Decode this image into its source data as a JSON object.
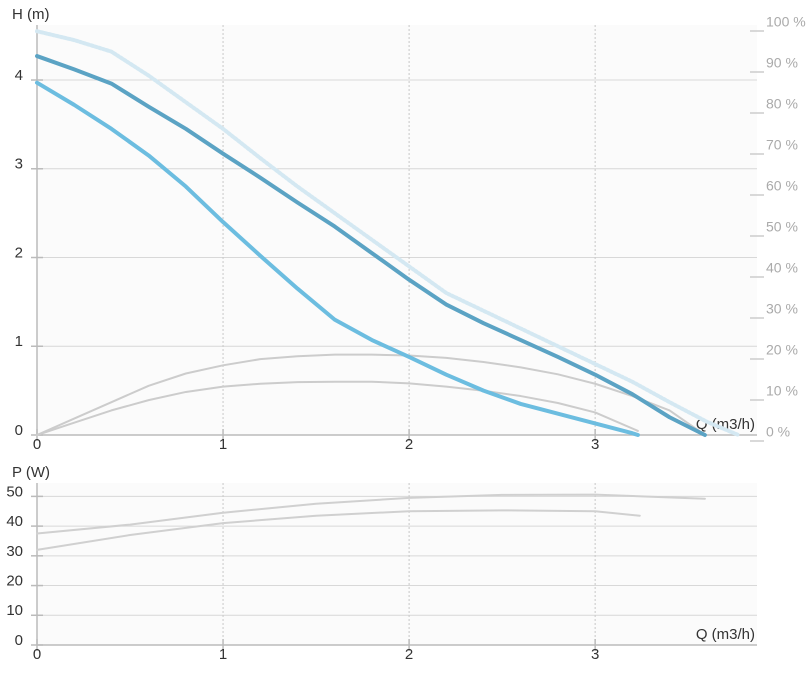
{
  "chart_data": [
    {
      "type": "line",
      "y_label": "H (m)",
      "x_label": "Q (m3/h)",
      "xlim": [
        0,
        3.87
      ],
      "xticks": [
        0,
        1,
        2,
        3
      ],
      "ylim": [
        0,
        4.62
      ],
      "yticks": [
        0,
        1,
        2,
        3,
        4
      ],
      "y2lim": [
        0,
        100
      ],
      "y2ticks": [
        {
          "value": 0,
          "label": "0 %"
        },
        {
          "value": 10,
          "label": "10 %"
        },
        {
          "value": 20,
          "label": "20 %"
        },
        {
          "value": 30,
          "label": "30 %"
        },
        {
          "value": 40,
          "label": "40 %"
        },
        {
          "value": 50,
          "label": "50 %"
        },
        {
          "value": 60,
          "label": "60 %"
        },
        {
          "value": 70,
          "label": "70 %"
        },
        {
          "value": 80,
          "label": "80 %"
        },
        {
          "value": 90,
          "label": "90 %"
        },
        {
          "value": 100,
          "label": "100 %"
        }
      ],
      "grid": true,
      "series": [
        {
          "color": "#d4e8f2",
          "style": "dotted",
          "x": [
            0,
            0.2,
            0.4,
            0.6,
            0.8,
            1.0,
            1.2,
            1.4,
            1.6,
            1.8,
            2.0,
            2.2,
            2.4,
            2.6,
            2.8,
            3.0,
            3.2,
            3.4,
            3.6,
            3.77
          ],
          "values": [
            4.55,
            4.45,
            4.32,
            4.05,
            3.75,
            3.45,
            3.12,
            2.8,
            2.5,
            2.2,
            1.9,
            1.6,
            1.4,
            1.2,
            1.0,
            0.8,
            0.6,
            0.37,
            0.15,
            0
          ]
        },
        {
          "color": "#cccccc",
          "axis": "y2",
          "x": [
            0,
            0.2,
            0.4,
            0.6,
            0.8,
            1.0,
            1.2,
            1.4,
            1.6,
            1.8,
            2.0,
            2.2,
            2.4,
            2.6,
            2.8,
            3.0,
            3.2,
            3.4,
            3.59
          ],
          "values": [
            0,
            4,
            8,
            12,
            15,
            17,
            18.5,
            19.2,
            19.6,
            19.6,
            19.4,
            18.8,
            17.8,
            16.5,
            14.8,
            12.5,
            9.5,
            6,
            0
          ]
        },
        {
          "color": "#cccccc",
          "axis": "y2",
          "x": [
            0,
            0.2,
            0.4,
            0.6,
            0.8,
            1.0,
            1.2,
            1.4,
            1.6,
            1.8,
            2.0,
            2.2,
            2.4,
            2.6,
            2.8,
            3.0,
            3.23
          ],
          "values": [
            0,
            3,
            6,
            8.5,
            10.5,
            11.8,
            12.5,
            12.9,
            13,
            13,
            12.6,
            11.8,
            10.8,
            9.5,
            7.8,
            5.5,
            1
          ]
        },
        {
          "color": "#5ba3c4",
          "x": [
            0,
            0.2,
            0.4,
            0.6,
            0.8,
            1.0,
            1.2,
            1.4,
            1.6,
            1.8,
            2.0,
            2.2,
            2.4,
            2.6,
            2.8,
            3.0,
            3.2,
            3.4,
            3.59
          ],
          "values": [
            4.27,
            4.12,
            3.96,
            3.7,
            3.45,
            3.17,
            2.9,
            2.62,
            2.35,
            2.05,
            1.75,
            1.47,
            1.26,
            1.07,
            0.88,
            0.68,
            0.46,
            0.2,
            0
          ]
        },
        {
          "color": "#6cbde0",
          "x": [
            0,
            0.2,
            0.4,
            0.6,
            0.8,
            1.0,
            1.2,
            1.4,
            1.6,
            1.8,
            2.0,
            2.2,
            2.4,
            2.6,
            2.8,
            3.0,
            3.2,
            3.23
          ],
          "values": [
            3.97,
            3.72,
            3.45,
            3.15,
            2.8,
            2.4,
            2.02,
            1.65,
            1.3,
            1.07,
            0.88,
            0.68,
            0.5,
            0.35,
            0.24,
            0.13,
            0.02,
            0
          ]
        }
      ]
    },
    {
      "type": "line",
      "y_label": "P (W)",
      "x_label": "Q (m3/h)",
      "xlim": [
        0,
        3.87
      ],
      "xticks": [
        0,
        1,
        2,
        3
      ],
      "ylim": [
        0,
        54.5
      ],
      "yticks": [
        0,
        10,
        20,
        30,
        40,
        50
      ],
      "grid": true,
      "series": [
        {
          "color": "#d0d0d0",
          "x": [
            0,
            0.5,
            1.0,
            1.5,
            2.0,
            2.5,
            3.0,
            3.59
          ],
          "values": [
            37.5,
            40.5,
            44.5,
            47.5,
            49.5,
            50.5,
            50.6,
            49.2
          ]
        },
        {
          "color": "#d0d0d0",
          "x": [
            0,
            0.5,
            1.0,
            1.5,
            2.0,
            2.5,
            3.0,
            3.24
          ],
          "values": [
            32,
            37,
            41,
            43.5,
            45,
            45.3,
            45,
            43.5
          ]
        }
      ]
    }
  ]
}
